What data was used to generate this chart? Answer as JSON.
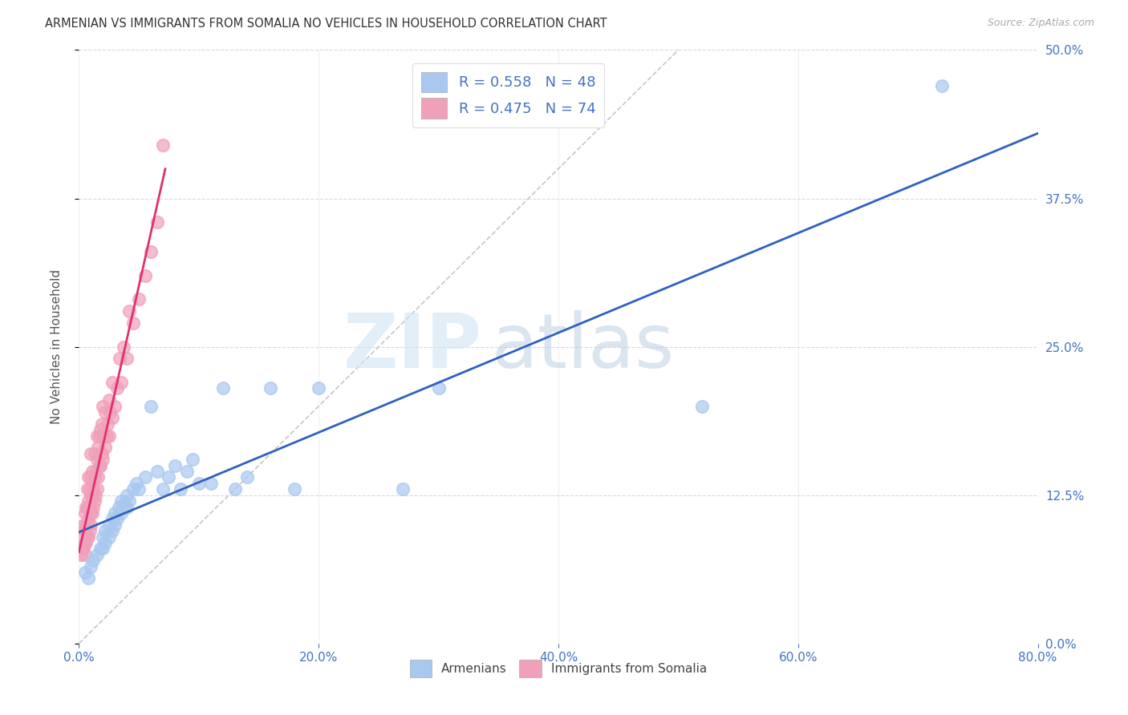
{
  "title": "ARMENIAN VS IMMIGRANTS FROM SOMALIA NO VEHICLES IN HOUSEHOLD CORRELATION CHART",
  "source": "Source: ZipAtlas.com",
  "ylabel": "No Vehicles in Household",
  "xlim": [
    0.0,
    0.8
  ],
  "ylim": [
    0.0,
    0.5
  ],
  "background_color": "#ffffff",
  "grid_color": "#d0d0d0",
  "watermark_zip": "ZIP",
  "watermark_atlas": "atlas",
  "armenian_color": "#a8c8f0",
  "somalia_color": "#f0a0b8",
  "armenian_line_color": "#3060c0",
  "somalia_line_color": "#e03070",
  "diagonal_color": "#c0c0c0",
  "tick_color": "#4472c4",
  "legend_armenian_R": "0.558",
  "legend_armenian_N": "48",
  "legend_somalia_R": "0.475",
  "legend_somalia_N": "74",
  "armenian_x": [
    0.005,
    0.008,
    0.01,
    0.012,
    0.015,
    0.018,
    0.02,
    0.02,
    0.022,
    0.022,
    0.025,
    0.025,
    0.028,
    0.028,
    0.03,
    0.03,
    0.032,
    0.033,
    0.035,
    0.035,
    0.038,
    0.04,
    0.04,
    0.042,
    0.045,
    0.048,
    0.05,
    0.055,
    0.06,
    0.065,
    0.07,
    0.075,
    0.08,
    0.085,
    0.09,
    0.095,
    0.1,
    0.11,
    0.12,
    0.13,
    0.14,
    0.16,
    0.18,
    0.2,
    0.27,
    0.3,
    0.52,
    0.72
  ],
  "armenian_y": [
    0.06,
    0.055,
    0.065,
    0.07,
    0.075,
    0.08,
    0.08,
    0.09,
    0.085,
    0.095,
    0.09,
    0.1,
    0.095,
    0.105,
    0.1,
    0.11,
    0.105,
    0.115,
    0.11,
    0.12,
    0.118,
    0.115,
    0.125,
    0.12,
    0.13,
    0.135,
    0.13,
    0.14,
    0.2,
    0.145,
    0.13,
    0.14,
    0.15,
    0.13,
    0.145,
    0.155,
    0.135,
    0.135,
    0.215,
    0.13,
    0.14,
    0.215,
    0.13,
    0.215,
    0.13,
    0.215,
    0.2,
    0.47
  ],
  "somalia_x": [
    0.002,
    0.003,
    0.003,
    0.004,
    0.004,
    0.005,
    0.005,
    0.005,
    0.005,
    0.006,
    0.006,
    0.006,
    0.007,
    0.007,
    0.007,
    0.007,
    0.008,
    0.008,
    0.008,
    0.008,
    0.009,
    0.009,
    0.009,
    0.01,
    0.01,
    0.01,
    0.01,
    0.01,
    0.011,
    0.011,
    0.011,
    0.012,
    0.012,
    0.013,
    0.013,
    0.013,
    0.014,
    0.014,
    0.015,
    0.015,
    0.015,
    0.016,
    0.016,
    0.017,
    0.017,
    0.018,
    0.018,
    0.019,
    0.019,
    0.02,
    0.02,
    0.02,
    0.022,
    0.022,
    0.023,
    0.024,
    0.025,
    0.025,
    0.026,
    0.028,
    0.028,
    0.03,
    0.032,
    0.034,
    0.035,
    0.037,
    0.04,
    0.042,
    0.045,
    0.05,
    0.055,
    0.06,
    0.065,
    0.07
  ],
  "somalia_y": [
    0.075,
    0.08,
    0.09,
    0.08,
    0.1,
    0.075,
    0.085,
    0.095,
    0.11,
    0.085,
    0.1,
    0.115,
    0.09,
    0.1,
    0.115,
    0.13,
    0.09,
    0.105,
    0.12,
    0.14,
    0.095,
    0.115,
    0.13,
    0.1,
    0.11,
    0.125,
    0.14,
    0.16,
    0.11,
    0.125,
    0.145,
    0.115,
    0.13,
    0.12,
    0.14,
    0.16,
    0.125,
    0.145,
    0.13,
    0.155,
    0.175,
    0.14,
    0.165,
    0.15,
    0.175,
    0.15,
    0.18,
    0.16,
    0.185,
    0.155,
    0.175,
    0.2,
    0.165,
    0.195,
    0.175,
    0.185,
    0.175,
    0.205,
    0.195,
    0.19,
    0.22,
    0.2,
    0.215,
    0.24,
    0.22,
    0.25,
    0.24,
    0.28,
    0.27,
    0.29,
    0.31,
    0.33,
    0.355,
    0.42
  ],
  "somalia_line_xmax": 0.072
}
